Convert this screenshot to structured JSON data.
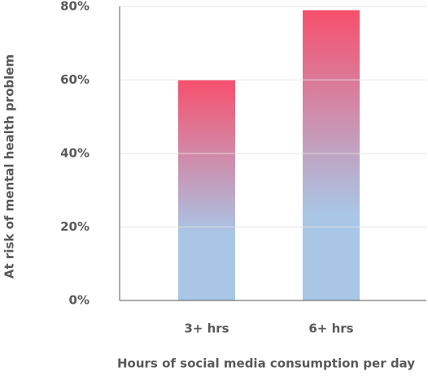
{
  "chart_data": {
    "type": "bar",
    "x_label": "Hours of social media consumption per day",
    "y_label": "At risk of mental health problem",
    "categories": [
      "3+ hrs",
      "6+ hrs"
    ],
    "values": [
      60,
      79
    ],
    "gradient": [
      "#f7506d",
      "#a9c6e6"
    ],
    "ylim": [
      0,
      80
    ],
    "yticks": [
      {
        "value": 0,
        "label": "0%"
      },
      {
        "value": 20,
        "label": "20%"
      },
      {
        "value": 40,
        "label": "40%"
      },
      {
        "value": 60,
        "label": "60%"
      },
      {
        "value": 80,
        "label": "80%"
      }
    ],
    "grid": true
  }
}
